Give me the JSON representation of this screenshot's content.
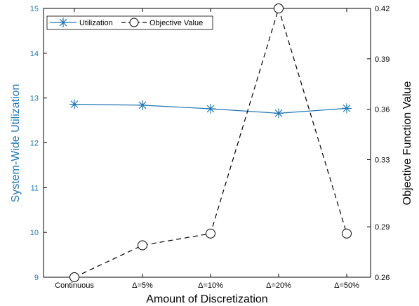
{
  "chart_data": {
    "type": "line",
    "dual_axis": true,
    "categories": [
      "Continuous",
      "Δ=5%",
      "Δ=10%",
      "Δ=20%",
      "Δ=50%"
    ],
    "xlabel": "Amount of Discretization",
    "ylabel_left": "System-Wide Utilization",
    "ylabel_right": "Objective Function Value",
    "ylim_left": [
      9,
      15
    ],
    "yticks_left": [
      "9",
      "10",
      "11",
      "12",
      "13",
      "14",
      "15"
    ],
    "ylim_right": [
      0.26,
      0.42
    ],
    "yticks_right": [
      "0.26",
      "0.29",
      "0.33",
      "0.36",
      "0.39",
      "0.42"
    ],
    "legend_position": "top-left",
    "grid": false,
    "series": [
      {
        "name": "Utilization",
        "axis": "left",
        "color": "#1f77b4",
        "line_style": "solid",
        "marker": "asterisk",
        "values": [
          12.86,
          12.84,
          12.76,
          12.66,
          12.77
        ]
      },
      {
        "name": "Objective Value",
        "axis": "right",
        "color": "#000000",
        "line_style": "dashed",
        "marker": "open-circle",
        "values": [
          0.26,
          0.279,
          0.286,
          0.42,
          0.286
        ]
      }
    ]
  }
}
